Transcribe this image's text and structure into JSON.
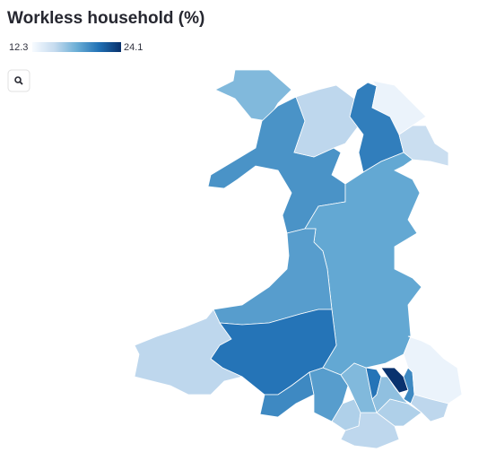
{
  "chart_data": {
    "type": "choropleth",
    "title": "Workless household (%)",
    "legend": {
      "min": 12.3,
      "max": 24.1
    },
    "colorscale": [
      "#f7fbff",
      "#c6dbef",
      "#6baed6",
      "#2171b5",
      "#08306b"
    ],
    "values": [
      17.5,
      19.5,
      15.5,
      20.5,
      13,
      15,
      18.5,
      19,
      15.5,
      21,
      20,
      19,
      16,
      15.5,
      16,
      17.5,
      21,
      17,
      24,
      20,
      13,
      15.5
    ]
  }
}
